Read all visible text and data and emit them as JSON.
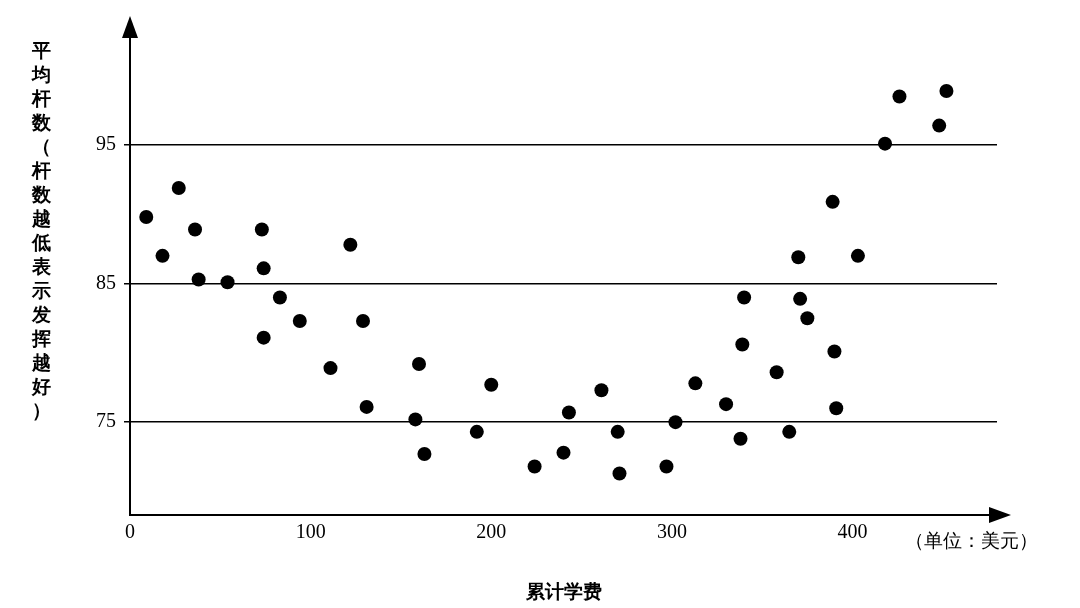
{
  "chart_data": {
    "type": "scatter",
    "xlabel": "累计学费",
    "ylabel": "平均杆数（杆数越低表示发挥越好）",
    "annotations": [
      "（单位：美元）"
    ],
    "x": [
      9,
      18,
      27,
      36,
      38,
      54,
      73,
      74,
      74,
      83,
      94,
      111,
      122,
      129,
      131,
      160,
      158,
      163,
      192,
      200,
      224,
      240,
      243,
      261,
      270,
      271,
      297,
      302,
      313,
      330,
      338,
      339,
      340,
      358,
      365,
      370,
      371,
      375,
      390,
      391,
      389,
      403,
      418,
      426,
      448,
      452
    ],
    "series": [
      {
        "color": "#000000",
        "values": [
          89.8,
          87.0,
          91.9,
          88.9,
          85.3,
          85.1,
          88.9,
          86.1,
          81.1,
          84.0,
          82.3,
          78.9,
          87.8,
          82.3,
          76.1,
          79.2,
          75.2,
          72.7,
          74.3,
          77.7,
          71.8,
          72.8,
          75.7,
          77.3,
          74.3,
          71.3,
          71.8,
          75.0,
          77.8,
          76.3,
          73.8,
          80.6,
          84.0,
          78.6,
          74.3,
          86.9,
          83.9,
          82.5,
          80.1,
          76.0,
          90.9,
          87.0,
          95.1,
          98.5,
          96.4,
          98.9
        ]
      }
    ],
    "xlim": [
      0,
      480
    ],
    "ylim": [
      68.3,
      103.3
    ],
    "xticks": [
      0,
      100,
      200,
      300,
      400
    ],
    "yticks": [
      75,
      85,
      95
    ],
    "grid": "y",
    "marker": "circle",
    "legend": false
  }
}
